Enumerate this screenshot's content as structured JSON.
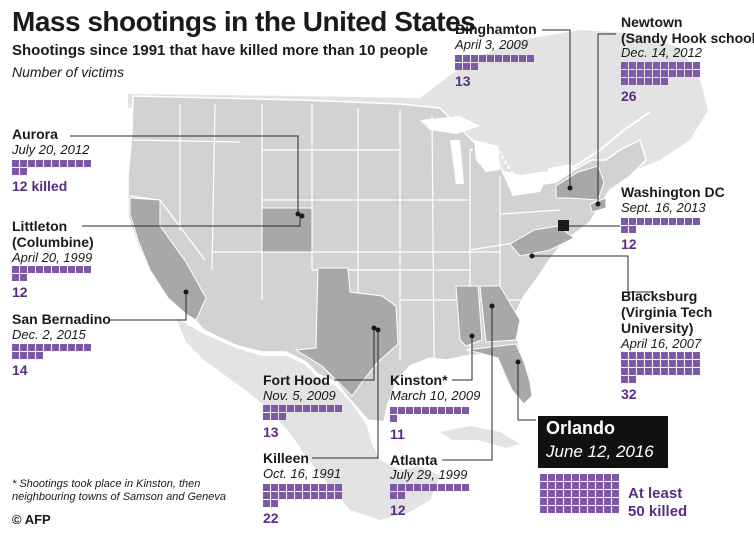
{
  "title": "Mass shootings in the United States",
  "subtitle": "Shootings since 1991 that have killed more than 10 people",
  "unit_note": "Number of victims",
  "footnote": "* Shootings took place in Kinston, then neighbouring towns of Samson and Geneva",
  "credit": "© AFP",
  "colors": {
    "victim": "#7e5aa6",
    "count": "#5b2c83",
    "map_land": "#d2d2d2",
    "map_highlight": "#a8a8a8",
    "canada": "#e3e3e3",
    "water": "#ffffff"
  },
  "chart_data": {
    "type": "table",
    "events": [
      {
        "id": "aurora",
        "place": [
          "Aurora"
        ],
        "date": "July 20, 2012",
        "victims": 12,
        "count_label": "12 killed"
      },
      {
        "id": "littleton",
        "place": [
          "Littleton",
          "(Columbine)"
        ],
        "date": "April 20, 1999",
        "victims": 12,
        "count_label": "12"
      },
      {
        "id": "sanbernadino",
        "place": [
          "San Bernadino"
        ],
        "date": "Dec. 2, 2015",
        "victims": 14,
        "count_label": "14"
      },
      {
        "id": "forthood",
        "place": [
          "Fort Hood"
        ],
        "date": "Nov. 5, 2009",
        "victims": 13,
        "count_label": "13"
      },
      {
        "id": "killeen",
        "place": [
          "Killeen"
        ],
        "date": "Oct. 16, 1991",
        "victims": 22,
        "count_label": "22"
      },
      {
        "id": "kinston",
        "place": [
          "Kinston*"
        ],
        "date": "March 10, 2009",
        "victims": 11,
        "count_label": "11"
      },
      {
        "id": "atlanta",
        "place": [
          "Atlanta"
        ],
        "date": "July 29, 1999",
        "victims": 12,
        "count_label": "12"
      },
      {
        "id": "binghamton",
        "place": [
          "Binghamton"
        ],
        "date": "April 3, 2009",
        "victims": 13,
        "count_label": "13"
      },
      {
        "id": "newtown",
        "place": [
          "Newtown",
          "(Sandy Hook school)"
        ],
        "date": "Dec. 14, 2012",
        "victims": 26,
        "count_label": "26"
      },
      {
        "id": "washington",
        "place": [
          "Washington DC"
        ],
        "date": "Sept. 16, 2013",
        "victims": 12,
        "count_label": "12"
      },
      {
        "id": "blacksburg",
        "place": [
          "Blacksburg",
          "(Virginia Tech",
          "University)"
        ],
        "date": "April 16, 2007",
        "victims": 32,
        "count_label": "32"
      },
      {
        "id": "orlando",
        "place": [
          "Orlando"
        ],
        "date": "June 12, 2016",
        "victims": 50,
        "count_label": [
          "At least",
          "50 killed"
        ]
      }
    ]
  }
}
